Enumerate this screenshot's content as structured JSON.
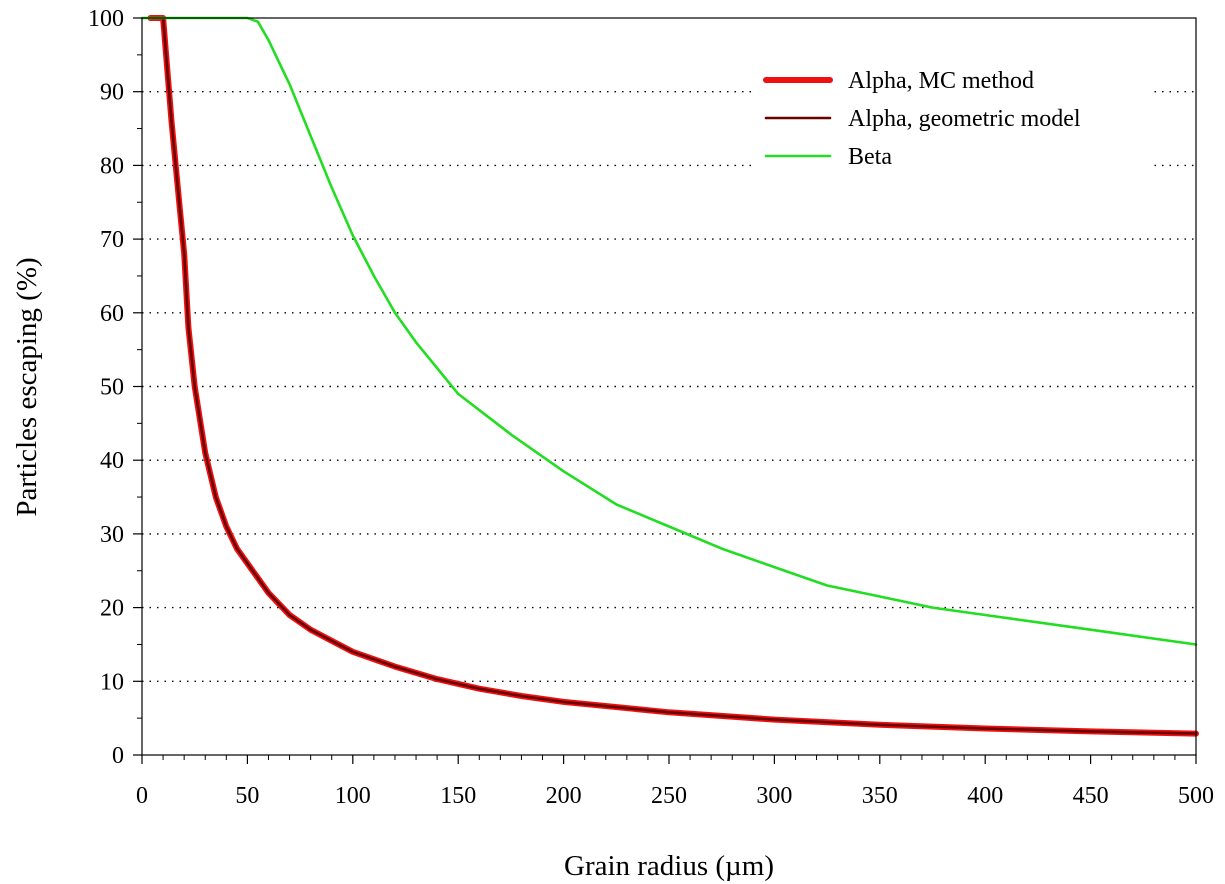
{
  "chart_data": {
    "type": "line",
    "title": "",
    "xlabel": "Grain radius (µm)",
    "ylabel": "Particles escaping (%)",
    "xlim": [
      0,
      500
    ],
    "ylim": [
      0,
      100
    ],
    "xticks": [
      0,
      50,
      100,
      150,
      200,
      250,
      300,
      350,
      400,
      450,
      500
    ],
    "yticks": [
      0,
      10,
      20,
      30,
      40,
      50,
      60,
      70,
      80,
      90,
      100
    ],
    "grid": "horizontal dotted",
    "legend_position": "top-right",
    "series": [
      {
        "name": "Alpha, MC method",
        "color": "#ee1111",
        "style": "thick",
        "x": [
          4,
          8,
          10,
          12,
          14,
          16,
          18,
          20,
          22,
          25,
          30,
          35,
          40,
          45,
          50,
          60,
          70,
          80,
          90,
          100,
          120,
          140,
          160,
          180,
          200,
          250,
          300,
          350,
          400,
          450,
          500
        ],
        "y": [
          100,
          100,
          100,
          93,
          86,
          80,
          74,
          68,
          58,
          50,
          41,
          35,
          31,
          28,
          26,
          22,
          19,
          17,
          15.5,
          14,
          12,
          10.3,
          9,
          8,
          7.2,
          5.8,
          4.8,
          4.1,
          3.6,
          3.2,
          2.9
        ]
      },
      {
        "name": "Alpha, geometric model",
        "color": "#6b0000",
        "style": "thin",
        "x": [
          4,
          8,
          10,
          12,
          14,
          16,
          18,
          20,
          22,
          25,
          30,
          35,
          40,
          45,
          50,
          60,
          70,
          80,
          90,
          100,
          120,
          140,
          160,
          180,
          200,
          250,
          300,
          350,
          400,
          450,
          500
        ],
        "y": [
          100,
          100,
          100,
          93,
          86,
          80,
          74,
          68,
          58,
          50,
          41,
          35,
          31,
          28,
          26,
          22,
          19,
          17,
          15.5,
          14,
          12,
          10.3,
          9,
          8,
          7.2,
          5.8,
          4.8,
          4.1,
          3.6,
          3.2,
          2.9
        ]
      },
      {
        "name": "Beta",
        "color": "#22dd22",
        "style": "thin",
        "x": [
          0,
          20,
          40,
          50,
          55,
          60,
          65,
          70,
          80,
          90,
          100,
          110,
          120,
          130,
          140,
          150,
          175,
          200,
          225,
          250,
          275,
          300,
          325,
          350,
          375,
          400,
          450,
          500
        ],
        "y": [
          100,
          100,
          100,
          100,
          99.5,
          97,
          94,
          91,
          84,
          77,
          70.5,
          65,
          60,
          56,
          52.5,
          49,
          43.5,
          38.5,
          34,
          31,
          28,
          25.5,
          23,
          21.5,
          20,
          19,
          17,
          15
        ]
      }
    ]
  }
}
